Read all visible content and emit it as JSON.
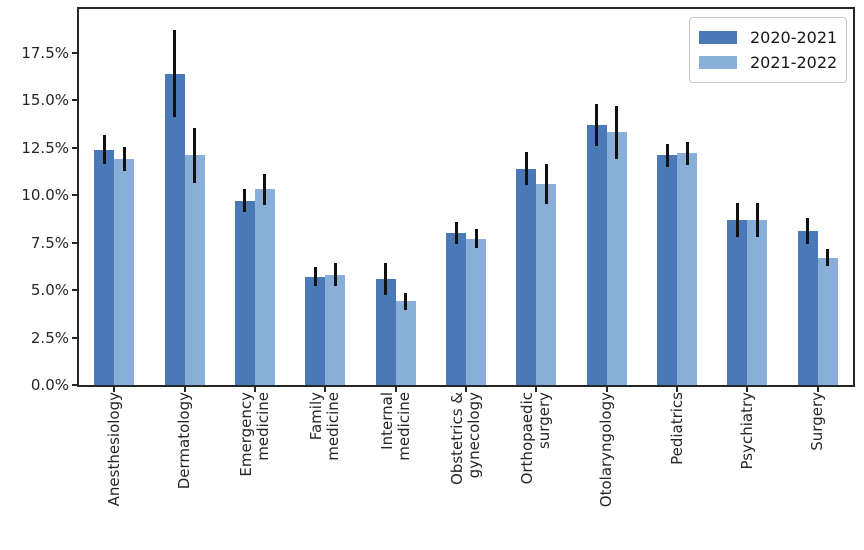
{
  "figure": {
    "background_color": "#ffffff",
    "axis_color": "#262626"
  },
  "chart_data": {
    "type": "bar",
    "title": "",
    "xlabel": "",
    "ylabel": "",
    "grid": false,
    "error_bars": true,
    "error_bar_color": "#111111",
    "categories": [
      "Anesthesiology",
      "Dermatology",
      "Emergency\nmedicine",
      "Family\nmedicine",
      "Internal\nmedicine",
      "Obstetrics &\ngynecology",
      "Orthopaedic\nsurgery",
      "Otolaryngology",
      "Pediatrics",
      "Psychiatry",
      "Surgery"
    ],
    "series": [
      {
        "name": "2020-2021",
        "color": "#4b79b7",
        "values": [
          12.4,
          16.4,
          9.7,
          5.7,
          5.6,
          8.0,
          11.4,
          13.7,
          12.1,
          8.7,
          8.1
        ],
        "errors": [
          0.75,
          2.3,
          0.6,
          0.5,
          0.85,
          0.6,
          0.85,
          1.1,
          0.6,
          0.9,
          0.7
        ]
      },
      {
        "name": "2021-2022",
        "color": "#89afd8",
        "values": [
          11.9,
          12.1,
          10.3,
          5.8,
          4.4,
          7.7,
          10.6,
          13.3,
          12.2,
          8.7,
          6.7
        ],
        "errors": [
          0.65,
          1.45,
          0.8,
          0.6,
          0.45,
          0.5,
          1.05,
          1.4,
          0.6,
          0.9,
          0.45
        ]
      }
    ],
    "ytick_labels": [
      "0.0%",
      "2.5%",
      "5.0%",
      "7.5%",
      "10.0%",
      "12.5%",
      "15.0%",
      "17.5%"
    ],
    "ytick_values": [
      0,
      2.5,
      5,
      7.5,
      10,
      12.5,
      15,
      17.5
    ],
    "ylim": [
      0,
      19.8
    ],
    "legend": {
      "position": "upper right",
      "entries": [
        "2020-2021",
        "2021-2022"
      ]
    }
  }
}
